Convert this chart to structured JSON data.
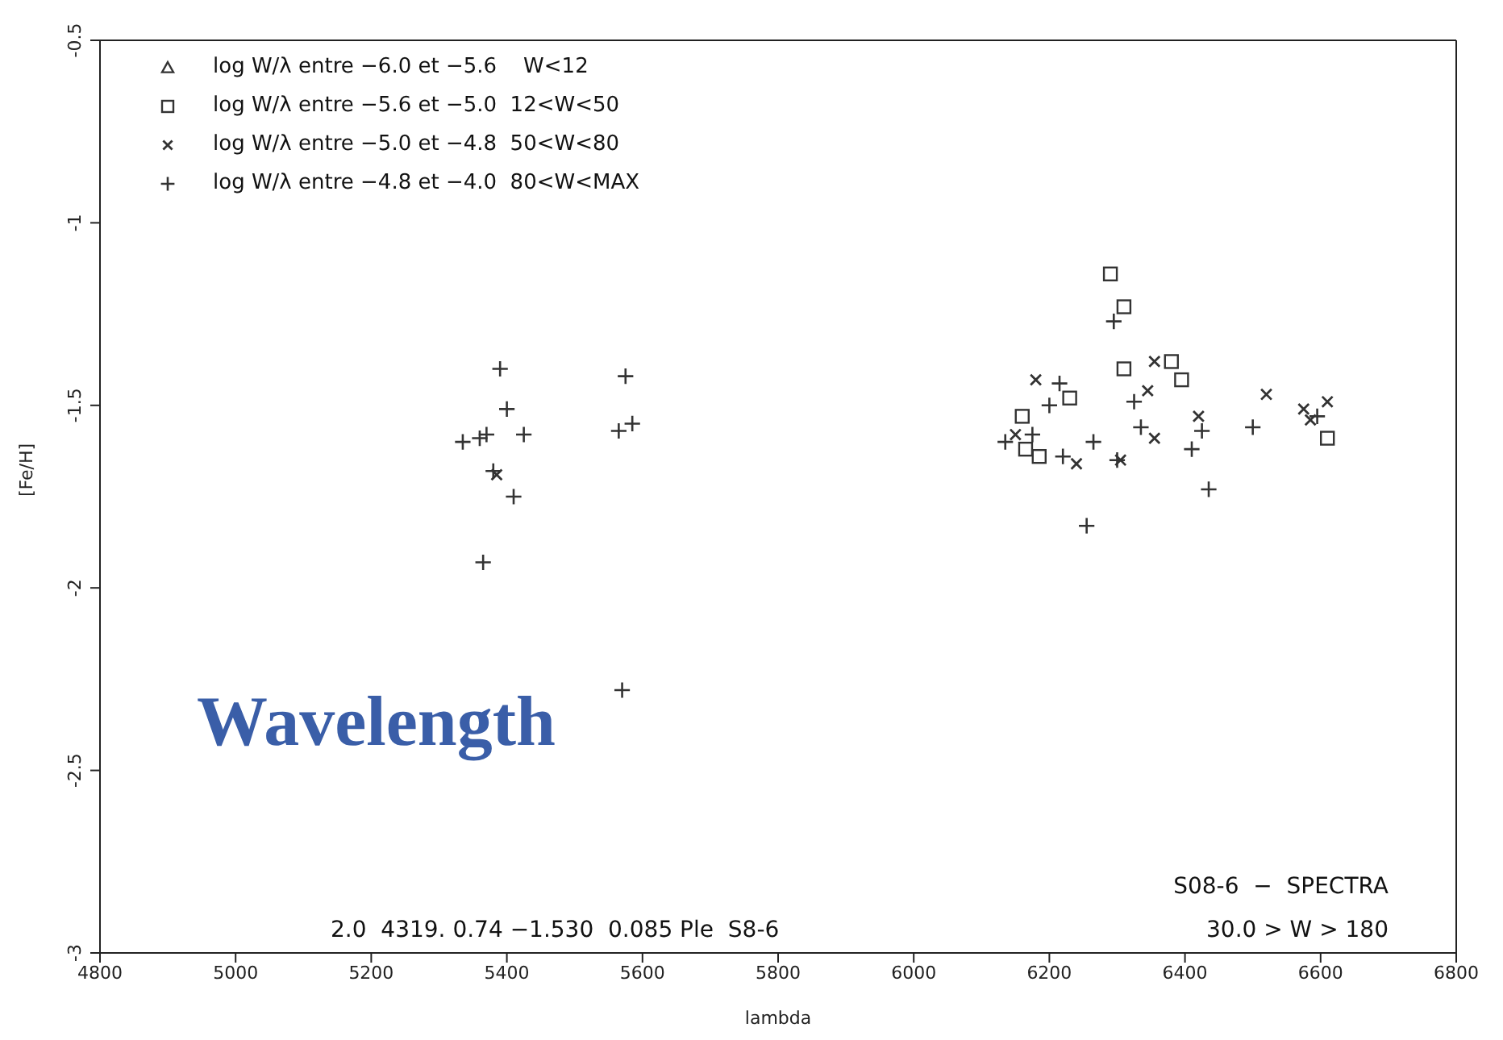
{
  "chart_data": {
    "type": "scatter",
    "xlabel": "lambda",
    "ylabel": "[Fe/H]",
    "xlim": [
      4800,
      6800
    ],
    "xticks": [
      4800,
      5000,
      5200,
      5400,
      5600,
      5800,
      6000,
      6200,
      6400,
      6600,
      6800
    ],
    "ylim": [
      -3,
      -0.5
    ],
    "yticks": [
      -3,
      -2.5,
      -2,
      -1.5,
      -1,
      -0.5
    ],
    "grid": false,
    "legend": "top left",
    "annotations": [
      "2.0  4319. 0.74 −1.530  0.085 Ple  S8-6",
      "S08-6  −  SPECTRA",
      "30.0 > W > 180",
      "Wavelength"
    ],
    "series": [
      {
        "name": "log W/λ entre −6.0 et −5.6    W<12",
        "color": "#333333",
        "marker": "triangle"
      },
      {
        "name": "log W/λ entre −5.6 et −5.0  12<W<50",
        "color": "#333333",
        "marker": "square",
        "x": [
          6290,
          6310,
          6310,
          6380,
          6395,
          6230,
          6160,
          6165,
          6185,
          6610
        ],
        "values": [
          -1.14,
          -1.23,
          -1.4,
          -1.38,
          -1.43,
          -1.48,
          -1.53,
          -1.62,
          -1.64,
          -1.59
        ]
      },
      {
        "name": "log W/λ entre −5.0 et −4.8  50<W<80",
        "color": "#333333",
        "marker": "x",
        "x": [
          5385,
          6180,
          6355,
          6345,
          6420,
          6520,
          6575,
          6585,
          6610,
          6150,
          6355,
          6240,
          6305
        ],
        "values": [
          -1.69,
          -1.43,
          -1.38,
          -1.46,
          -1.53,
          -1.47,
          -1.51,
          -1.54,
          -1.49,
          -1.58,
          -1.59,
          -1.66,
          -1.65
        ]
      },
      {
        "name": "log W/λ entre −4.8 et −4.0  80<W<MAX",
        "color": "#333333",
        "marker": "cross",
        "x": [
          5390,
          5575,
          5400,
          5370,
          5360,
          5335,
          5425,
          5585,
          5565,
          5380,
          5410,
          5365,
          5570,
          6295,
          6215,
          6200,
          6325,
          6175,
          6135,
          6335,
          6425,
          6500,
          6595,
          6265,
          6220,
          6300,
          6410,
          6435,
          6255
        ],
        "values": [
          -1.4,
          -1.42,
          -1.51,
          -1.58,
          -1.59,
          -1.6,
          -1.58,
          -1.55,
          -1.57,
          -1.68,
          -1.75,
          -1.93,
          -2.28,
          -1.27,
          -1.44,
          -1.5,
          -1.49,
          -1.58,
          -1.6,
          -1.56,
          -1.57,
          -1.56,
          -1.53,
          -1.6,
          -1.64,
          -1.65,
          -1.62,
          -1.73,
          -1.83
        ]
      }
    ]
  }
}
